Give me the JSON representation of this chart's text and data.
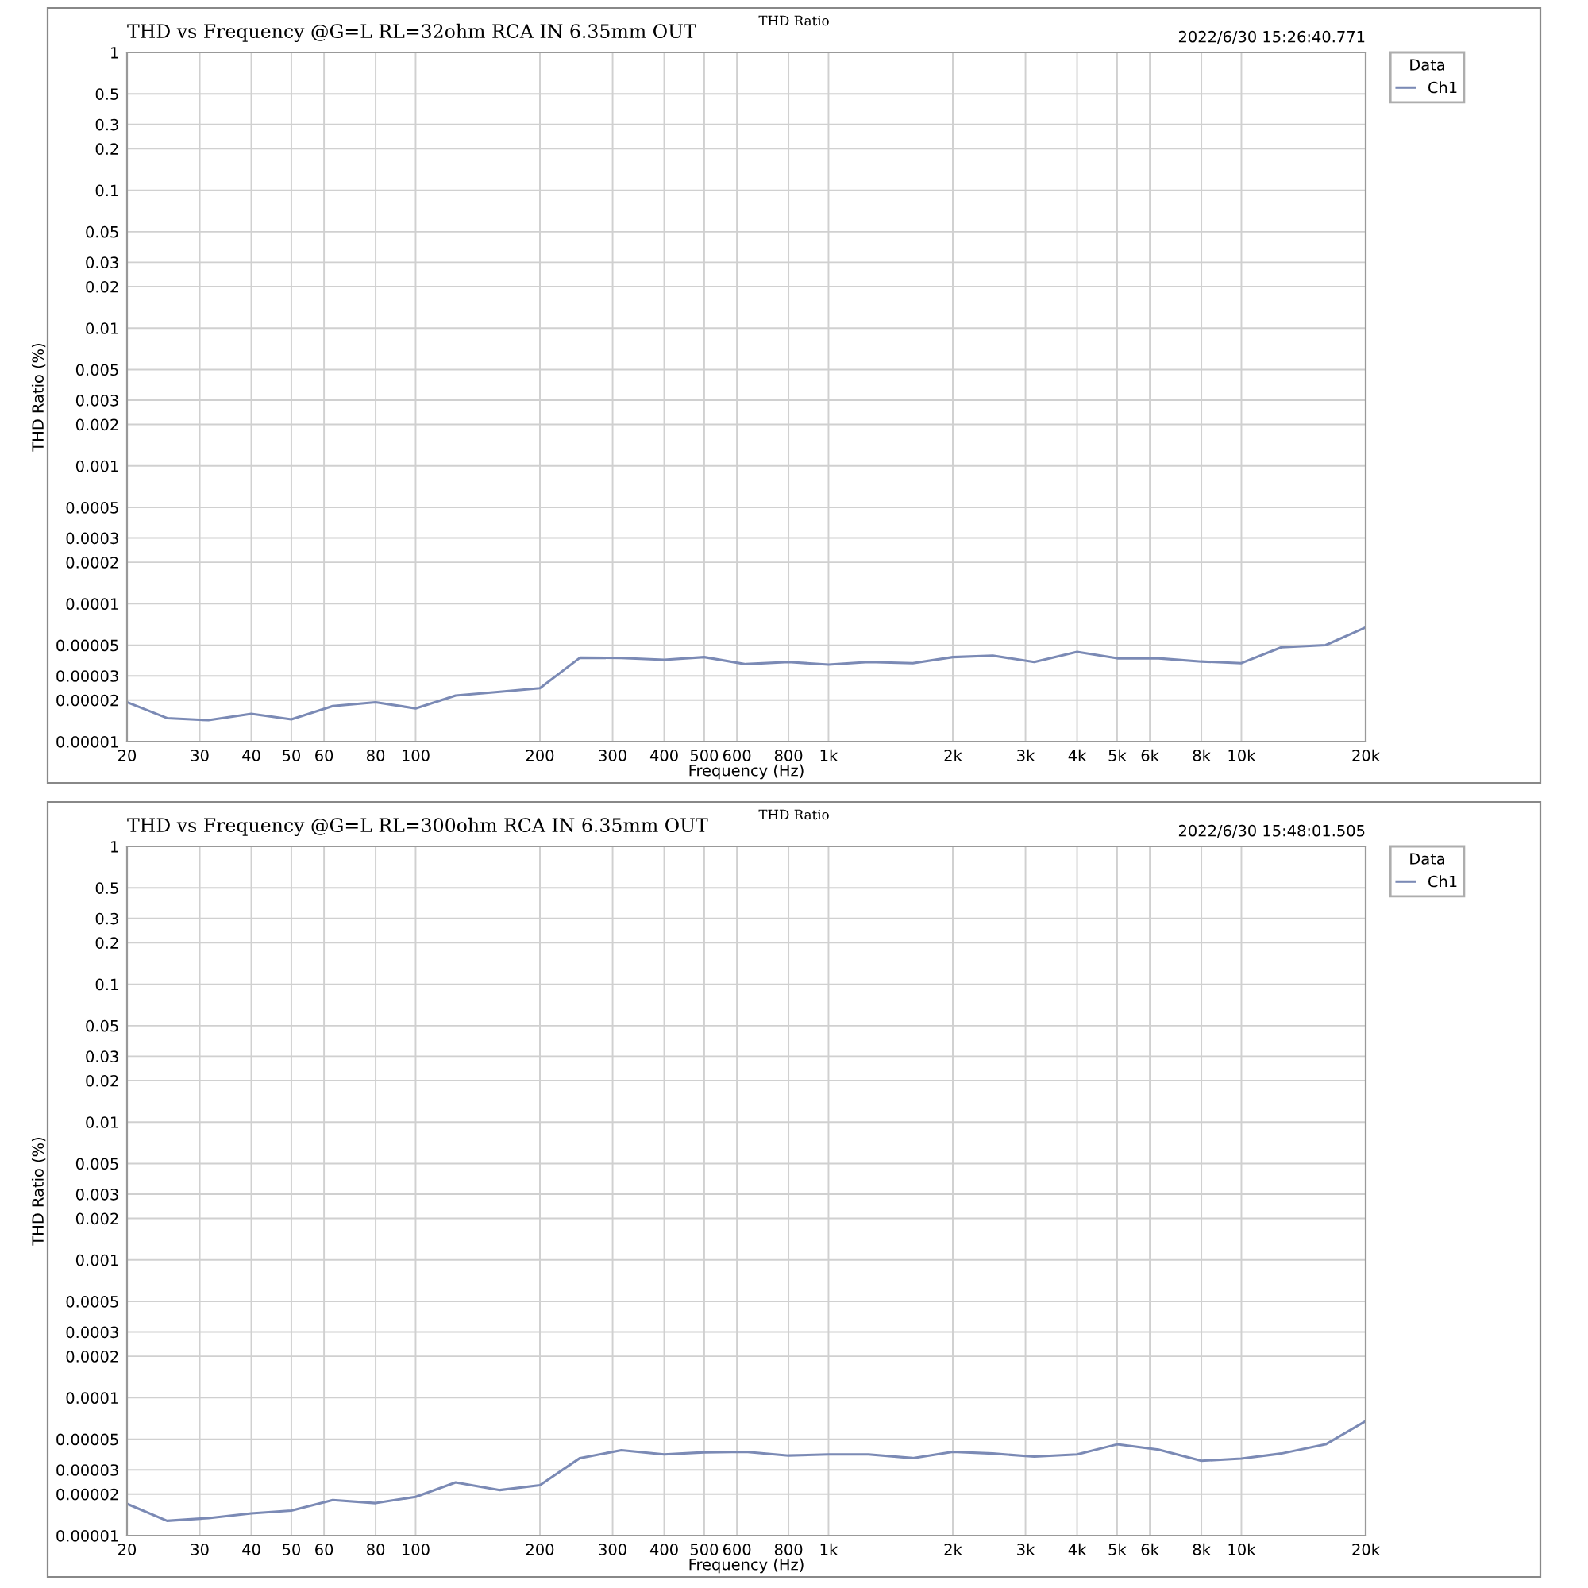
{
  "chart_data": [
    {
      "type": "line",
      "title": "THD Ratio",
      "subtitle": "THD vs Frequency @G=L RL=32ohm RCA IN 6.35mm OUT",
      "annotations": [
        "2022/6/30 15:26:40.771"
      ],
      "xlabel": "Frequency (Hz)",
      "ylabel": "THD Ratio (%)",
      "legend_title": "Data",
      "legend": "right",
      "grid": true,
      "log": "xy",
      "marker": "none",
      "line_style": "solid",
      "xlim": [
        20,
        20000
      ],
      "ylim": [
        1e-05,
        1
      ],
      "xticks": [
        20,
        30,
        40,
        50,
        60,
        80,
        100,
        200,
        300,
        400,
        500,
        600,
        800,
        {
          "value": 1000,
          "label": "1k"
        },
        {
          "value": 2000,
          "label": "2k"
        },
        {
          "value": 3000,
          "label": "3k"
        },
        {
          "value": 4000,
          "label": "4k"
        },
        {
          "value": 5000,
          "label": "5k"
        },
        {
          "value": 6000,
          "label": "6k"
        },
        {
          "value": 8000,
          "label": "8k"
        },
        {
          "value": 10000,
          "label": "10k"
        },
        {
          "value": 20000,
          "label": "20k"
        }
      ],
      "yticks": [
        1,
        0.5,
        0.3,
        0.2,
        0.1,
        0.05,
        0.03,
        0.02,
        0.01,
        0.005,
        0.003,
        0.002,
        0.001,
        0.0005,
        0.0003,
        0.0002,
        0.0001,
        {
          "value": 5e-05,
          "label": "0.00005"
        },
        {
          "value": 3e-05,
          "label": "0.00003"
        },
        {
          "value": 2e-05,
          "label": "0.00002"
        },
        {
          "value": 1e-05,
          "label": "0.00001"
        }
      ],
      "x": [
        20,
        25,
        31.5,
        40,
        50,
        63,
        80,
        100,
        125,
        160,
        200,
        250,
        315,
        400,
        500,
        630,
        800,
        1000,
        1250,
        1600,
        2000,
        2500,
        3150,
        4000,
        5000,
        6300,
        8000,
        10000,
        12500,
        16000,
        20000
      ],
      "series": [
        {
          "name": "Ch1",
          "color": "#7b8ab5",
          "values": [
            1.93e-05,
            1.48e-05,
            1.43e-05,
            1.59e-05,
            1.45e-05,
            1.81e-05,
            1.93e-05,
            1.74e-05,
            2.16e-05,
            2.3e-05,
            2.44e-05,
            4.06e-05,
            4.04e-05,
            3.92e-05,
            4.1e-05,
            3.65e-05,
            3.78e-05,
            3.62e-05,
            3.78e-05,
            3.71e-05,
            4.1e-05,
            4.2e-05,
            3.78e-05,
            4.47e-05,
            4.02e-05,
            4.02e-05,
            3.81e-05,
            3.71e-05,
            4.83e-05,
            5.01e-05,
            6.74e-05
          ]
        }
      ]
    },
    {
      "type": "line",
      "title": "THD Ratio",
      "subtitle": "THD vs Frequency @G=L RL=300ohm RCA IN 6.35mm OUT",
      "annotations": [
        "2022/6/30 15:48:01.505"
      ],
      "xlabel": "Frequency (Hz)",
      "ylabel": "THD Ratio (%)",
      "legend_title": "Data",
      "legend": "right",
      "grid": true,
      "log": "xy",
      "marker": "none",
      "line_style": "solid",
      "xlim": [
        20,
        20000
      ],
      "ylim": [
        1e-05,
        1
      ],
      "xticks": [
        20,
        30,
        40,
        50,
        60,
        80,
        100,
        200,
        300,
        400,
        500,
        600,
        800,
        {
          "value": 1000,
          "label": "1k"
        },
        {
          "value": 2000,
          "label": "2k"
        },
        {
          "value": 3000,
          "label": "3k"
        },
        {
          "value": 4000,
          "label": "4k"
        },
        {
          "value": 5000,
          "label": "5k"
        },
        {
          "value": 6000,
          "label": "6k"
        },
        {
          "value": 8000,
          "label": "8k"
        },
        {
          "value": 10000,
          "label": "10k"
        },
        {
          "value": 20000,
          "label": "20k"
        }
      ],
      "yticks": [
        1,
        0.5,
        0.3,
        0.2,
        0.1,
        0.05,
        0.03,
        0.02,
        0.01,
        0.005,
        0.003,
        0.002,
        0.001,
        0.0005,
        0.0003,
        0.0002,
        0.0001,
        {
          "value": 5e-05,
          "label": "0.00005"
        },
        {
          "value": 3e-05,
          "label": "0.00003"
        },
        {
          "value": 2e-05,
          "label": "0.00002"
        },
        {
          "value": 1e-05,
          "label": "0.00001"
        }
      ],
      "x": [
        20,
        25,
        31.5,
        40,
        50,
        63,
        80,
        100,
        125,
        160,
        200,
        250,
        315,
        400,
        500,
        630,
        800,
        1000,
        1250,
        1600,
        2000,
        2500,
        3150,
        4000,
        5000,
        6300,
        8000,
        10000,
        12500,
        16000,
        20000
      ],
      "series": [
        {
          "name": "Ch1",
          "color": "#7b8ab5",
          "values": [
            1.7e-05,
            1.28e-05,
            1.34e-05,
            1.45e-05,
            1.52e-05,
            1.81e-05,
            1.72e-05,
            1.91e-05,
            2.43e-05,
            2.14e-05,
            2.32e-05,
            3.65e-05,
            4.16e-05,
            3.88e-05,
            4.02e-05,
            4.05e-05,
            3.81e-05,
            3.88e-05,
            3.88e-05,
            3.65e-05,
            4.05e-05,
            3.94e-05,
            3.74e-05,
            3.88e-05,
            4.59e-05,
            4.2e-05,
            3.49e-05,
            3.62e-05,
            3.94e-05,
            4.59e-05,
            6.77e-05
          ]
        }
      ]
    }
  ]
}
